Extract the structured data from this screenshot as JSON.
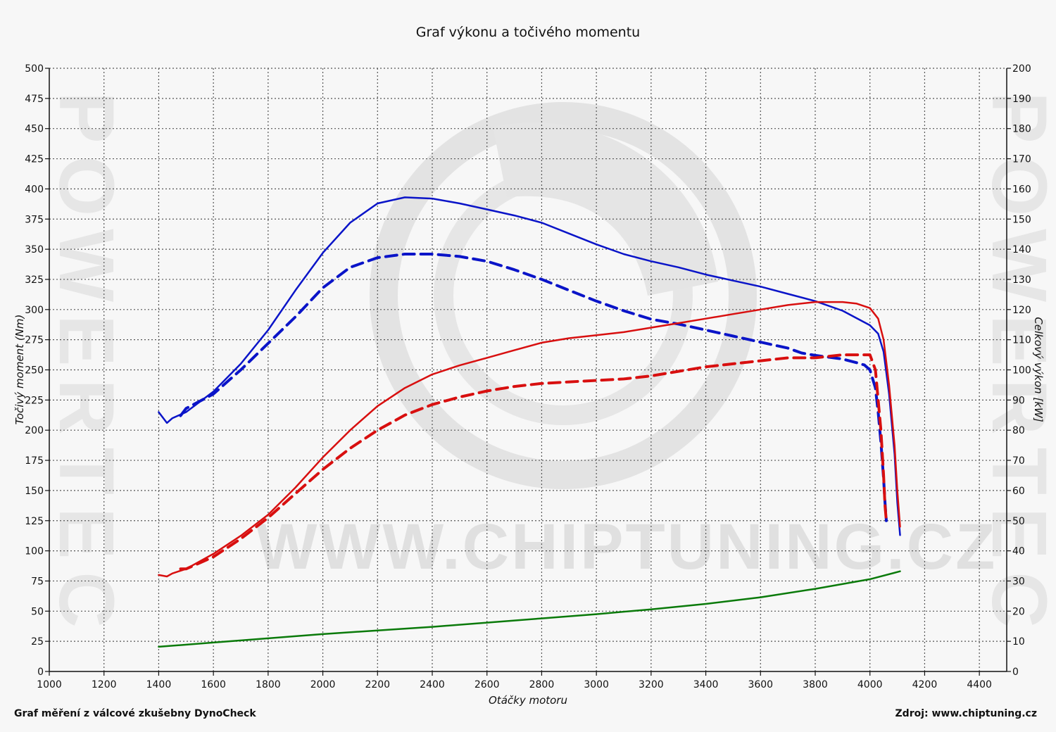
{
  "chart_data": {
    "type": "line",
    "title": "Graf výkonu a točivého momentu",
    "xlabel": "Otáčky motoru",
    "ylabel_left": "Točivý moment (Nm)",
    "ylabel_right": "Celkový výkon [kW]",
    "xlim": [
      1000,
      4500
    ],
    "ylim_left": [
      0,
      500
    ],
    "ylim_right": [
      0,
      200
    ],
    "x_ticks": [
      1000,
      1200,
      1400,
      1600,
      1800,
      2000,
      2200,
      2400,
      2600,
      2800,
      3000,
      3200,
      3400,
      3600,
      3800,
      4000,
      4200,
      4400
    ],
    "y_ticks_left": [
      0,
      25,
      50,
      75,
      100,
      125,
      150,
      175,
      200,
      225,
      250,
      275,
      300,
      325,
      350,
      375,
      400,
      425,
      450,
      475,
      500
    ],
    "y_ticks_right": [
      0,
      10,
      20,
      30,
      40,
      50,
      60,
      70,
      80,
      90,
      100,
      110,
      120,
      130,
      140,
      150,
      160,
      170,
      180,
      190,
      200
    ],
    "grid": true,
    "colors": {
      "torque": "#0a14c8",
      "power": "#d80f0f",
      "drag": "#0a7a0a"
    },
    "series": [
      {
        "axis": "left",
        "color": "#0a14c8",
        "dashed": false,
        "x": [
          1400,
          1430,
          1450,
          1500,
          1600,
          1700,
          1800,
          1900,
          2000,
          2100,
          2200,
          2300,
          2400,
          2500,
          2600,
          2700,
          2800,
          2900,
          3000,
          3100,
          3200,
          3300,
          3400,
          3500,
          3600,
          3700,
          3800,
          3900,
          4000,
          4030,
          4050,
          4070,
          4090,
          4100,
          4110
        ],
        "y": [
          215,
          206,
          210,
          215,
          232,
          255,
          283,
          316,
          347,
          372,
          388,
          393,
          392,
          388,
          383,
          378,
          372,
          363,
          354,
          346,
          340,
          335,
          329,
          324,
          319,
          313,
          307,
          299,
          287,
          280,
          265,
          230,
          180,
          140,
          113
        ]
      },
      {
        "axis": "left",
        "color": "#0a14c8",
        "dashed": true,
        "x": [
          1480,
          1500,
          1600,
          1700,
          1800,
          1900,
          2000,
          2100,
          2200,
          2300,
          2400,
          2500,
          2600,
          2700,
          2800,
          2900,
          3000,
          3100,
          3200,
          3300,
          3400,
          3500,
          3600,
          3700,
          3750,
          3800,
          3900,
          3950,
          3980,
          4000,
          4020,
          4030,
          4040,
          4050,
          4055,
          4060
        ],
        "y": [
          212,
          218,
          230,
          250,
          272,
          294,
          318,
          335,
          343,
          346,
          346,
          344,
          340,
          333,
          325,
          316,
          307,
          299,
          292,
          288,
          283,
          278,
          273,
          268,
          264,
          262,
          259,
          256,
          254,
          250,
          235,
          215,
          190,
          160,
          140,
          125
        ]
      },
      {
        "axis": "right",
        "color": "#d80f0f",
        "dashed": false,
        "x": [
          1400,
          1430,
          1450,
          1500,
          1600,
          1700,
          1800,
          1900,
          2000,
          2100,
          2200,
          2300,
          2400,
          2500,
          2600,
          2700,
          2800,
          2900,
          3000,
          3100,
          3200,
          3300,
          3400,
          3500,
          3600,
          3700,
          3800,
          3850,
          3900,
          3950,
          4000,
          4030,
          4050,
          4070,
          4090,
          4100,
          4110
        ],
        "y": [
          32,
          31.5,
          32.5,
          34,
          39,
          45,
          52,
          61,
          71,
          80,
          88,
          94,
          98.5,
          101.5,
          104,
          106.5,
          109,
          110.5,
          111.5,
          112.5,
          114,
          115.5,
          117,
          118.5,
          120,
          121.5,
          122.5,
          122.5,
          122.5,
          122,
          120.5,
          117,
          110,
          95,
          75,
          60,
          48
        ]
      },
      {
        "axis": "right",
        "color": "#d80f0f",
        "dashed": true,
        "x": [
          1480,
          1500,
          1600,
          1700,
          1800,
          1900,
          2000,
          2100,
          2200,
          2300,
          2400,
          2500,
          2600,
          2700,
          2800,
          2900,
          3000,
          3100,
          3200,
          3300,
          3400,
          3500,
          3600,
          3700,
          3750,
          3800,
          3900,
          3950,
          3980,
          4000,
          4020,
          4030,
          4040,
          4050,
          4055,
          4060
        ],
        "y": [
          34,
          34,
          38,
          44,
          51,
          59,
          67,
          74,
          80,
          85,
          88.5,
          91,
          93,
          94.5,
          95.5,
          96,
          96.5,
          97,
          98,
          99.5,
          101,
          102,
          103,
          104,
          104,
          104,
          105,
          105,
          105,
          105,
          100,
          90,
          80,
          65,
          55,
          50
        ]
      },
      {
        "axis": "left",
        "color": "#0a7a0a",
        "dashed": false,
        "x": [
          1400,
          1600,
          1800,
          2000,
          2200,
          2400,
          2600,
          2800,
          3000,
          3200,
          3400,
          3600,
          3800,
          4000,
          4110
        ],
        "y": [
          20.5,
          24,
          27.5,
          31,
          34,
          37,
          40.5,
          44,
          47.5,
          51.5,
          56,
          61.5,
          68.5,
          76.5,
          83
        ]
      }
    ]
  },
  "watermark": "WWW.CHIPTUNING.CZ",
  "side_watermark": "POWERTEC",
  "footer": {
    "left": "Graf měření z válcové zkušebny DynoCheck",
    "right": "Zdroj: www.chiptuning.cz"
  }
}
